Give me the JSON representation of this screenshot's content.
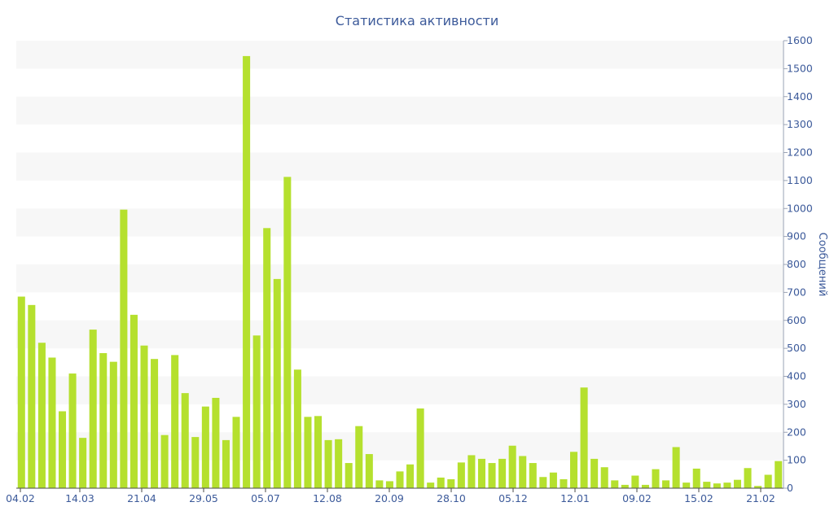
{
  "chart_data": {
    "type": "bar",
    "title": "Статистика активности",
    "ylabel": "Сообщений",
    "ylim": [
      0,
      1600
    ],
    "yticks": [
      0,
      100,
      200,
      300,
      400,
      500,
      600,
      700,
      800,
      900,
      1000,
      1100,
      1200,
      1300,
      1400,
      1500,
      1600
    ],
    "x_tick_labels": [
      "04.02",
      "14.03",
      "21.04",
      "29.05",
      "05.07",
      "12.08",
      "20.09",
      "28.10",
      "05.12",
      "12.01",
      "09.02",
      "15.02",
      "21.02"
    ],
    "y_axis_position": "right",
    "grid": "alternating horizontal bands",
    "legend": false,
    "values": [
      685,
      655,
      520,
      467,
      275,
      410,
      180,
      567,
      483,
      452,
      996,
      620,
      510,
      462,
      190,
      476,
      340,
      183,
      292,
      323,
      172,
      255,
      1545,
      546,
      930,
      748,
      1113,
      424,
      255,
      258,
      172,
      175,
      90,
      222,
      122,
      28,
      25,
      60,
      85,
      285,
      20,
      38,
      32,
      92,
      118,
      105,
      90,
      105,
      152,
      115,
      90,
      40,
      56,
      32,
      130,
      360,
      105,
      75,
      28,
      12,
      45,
      12,
      68,
      28,
      147,
      20,
      70,
      23,
      17,
      20,
      30,
      72,
      8,
      48,
      97
    ],
    "colors": {
      "bar": "#b5e02e",
      "axis_text": "#3c5a9a",
      "band": "#f7f7f7",
      "axis_line": "#4a4a4a"
    }
  }
}
